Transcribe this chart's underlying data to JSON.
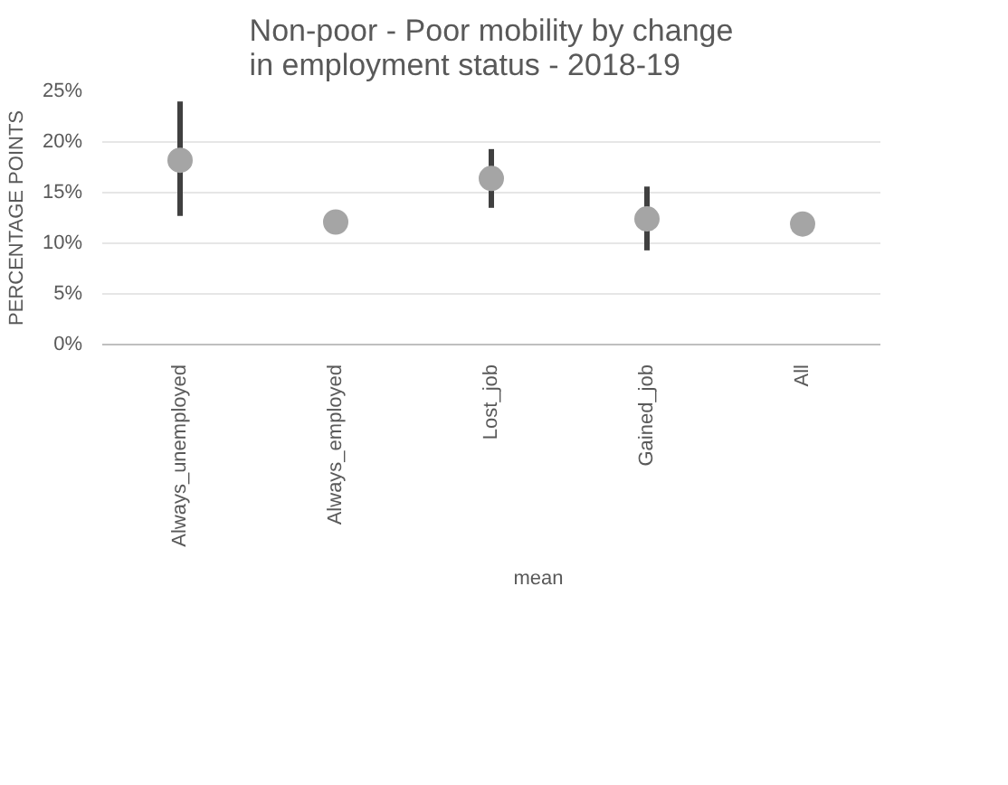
{
  "chart_data": {
    "type": "scatter",
    "title": "Non-poor - Poor mobility by change in employment status - 2018-19",
    "ylabel": "PERCENTAGE POINTS",
    "categories": [
      "Always_unemployed",
      "Always_employed",
      "Lost_job",
      "Gained_job",
      "All"
    ],
    "series": [
      {
        "name": "mean",
        "color": "#a5a5a5",
        "values": [
          18.2,
          12.1,
          16.4,
          12.4,
          11.9
        ],
        "errors": [
          [
            12.7,
            24.0
          ],
          [
            12.1,
            13.0
          ],
          [
            13.5,
            19.3
          ],
          [
            9.3,
            15.6
          ],
          null
        ]
      }
    ],
    "ylim": [
      0,
      25
    ],
    "yticks": [
      {
        "value": 0,
        "label": "0%"
      },
      {
        "value": 5,
        "label": "5%"
      },
      {
        "value": 10,
        "label": "10%"
      },
      {
        "value": 15,
        "label": "15%"
      },
      {
        "value": 20,
        "label": "20%"
      },
      {
        "value": 25,
        "label": "25%"
      }
    ],
    "grid": "y",
    "legend": "bottom",
    "marker": "circle"
  }
}
